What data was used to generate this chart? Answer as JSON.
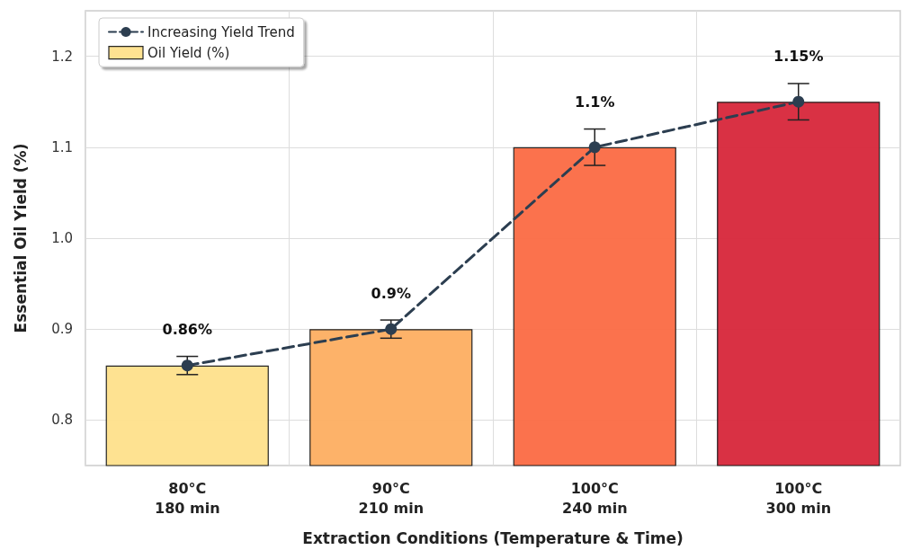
{
  "chart_data": {
    "type": "bar",
    "xlabel": "Extraction Conditions (Temperature & Time)",
    "ylabel": "Essential Oil Yield (%)",
    "categories": [
      "80°C\n180 min",
      "90°C\n210 min",
      "100°C\n240 min",
      "100°C\n300 min"
    ],
    "series": [
      {
        "name": "Oil Yield (%)",
        "colors": [
          "#fee08b",
          "#fdae61",
          "#fb6a43",
          "#d7263a"
        ],
        "values": [
          0.86,
          0.9,
          1.1,
          1.15
        ],
        "errors": [
          0.01,
          0.01,
          0.02,
          0.02
        ],
        "value_labels": [
          "0.86%",
          "0.9%",
          "1.1%",
          "1.15%"
        ]
      },
      {
        "type": "line",
        "name": "Increasing Yield Trend",
        "color": "#2c3e50",
        "values": [
          0.86,
          0.9,
          1.1,
          1.15
        ],
        "line_style": "dashed",
        "marker": "circle"
      }
    ],
    "ylim": [
      0.75,
      1.25
    ],
    "yticks": [
      0.8,
      0.9,
      {
        "value": 1,
        "label": "1.0"
      },
      1.1,
      1.2
    ],
    "grid": true,
    "legend": "top left"
  }
}
